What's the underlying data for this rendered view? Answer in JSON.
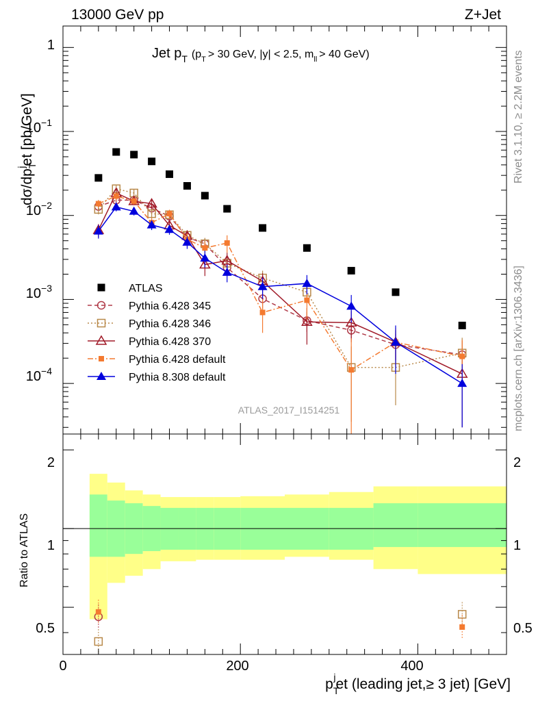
{
  "header": {
    "left": "13000 GeV pp",
    "right": "Z+Jet"
  },
  "title": {
    "main": "Jet p",
    "main_sub": "T",
    "cuts_1": "(p",
    "cuts_1_sub": "T",
    "cuts_2": "> 30 GeV, |y| < 2.5, m",
    "cuts_2_sub": "ll",
    "cuts_3": "> 40 GeV)"
  },
  "side_labels": {
    "rivet": "Rivet 3.1.10, ≥ 2.2M events",
    "mcplots": "mcplots.cern.ch [arXiv:1306.3436]"
  },
  "analysis_id": "ATLAS_2017_I1514251",
  "axes": {
    "ylabel_top": "dσ/dp_T^jet [pb/GeV]",
    "ylabel_bottom": "Ratio to ATLAS",
    "xlabel": "p_T^jet (leading jet,≥ 3 jet) [GeV]",
    "top_ticks": [
      "1",
      "10",
      "10",
      "10",
      "10"
    ],
    "top_ticks_exp": [
      "",
      "−1",
      "−2",
      "−3",
      "−4"
    ],
    "bottom_ticks": [
      "2",
      "1",
      "0.5"
    ],
    "x_ticks": [
      "0",
      "200",
      "400"
    ]
  },
  "colors": {
    "ATLAS": "#000000",
    "Pythia 6.428 345": "#b03a48",
    "Pythia 6.428 346": "#b8894a",
    "Pythia 6.428 370": "#a01a28",
    "Pythia 6.428 default": "#f47a30",
    "Pythia 8.308 default": "#0000dd",
    "band_inner": "#99ff99",
    "band_outer": "#ffff88"
  },
  "chart_data": {
    "type": "scatter",
    "x_scale": "linear",
    "y_scale": "log",
    "xlim": [
      0,
      500
    ],
    "ylim": [
      2.5e-05,
      1.8
    ],
    "ratio_ylim": [
      0.33,
      2.3
    ],
    "legend_position": "lower-left",
    "bin_edges": [
      30,
      50,
      70,
      90,
      110,
      130,
      150,
      170,
      200,
      250,
      300,
      350,
      400,
      500
    ],
    "x": [
      40,
      60,
      80,
      100,
      120,
      140,
      160,
      185,
      225,
      275,
      325,
      375,
      450
    ],
    "series": [
      {
        "name": "ATLAS",
        "style": "square-filled",
        "values": [
          0.028,
          0.057,
          0.053,
          0.044,
          0.031,
          0.0225,
          0.0172,
          0.012,
          0.0071,
          0.0041,
          0.0022,
          0.00122,
          0.00049
        ],
        "errors": [
          0,
          0,
          0,
          0,
          0,
          0,
          0,
          0,
          0,
          0,
          0,
          0,
          0
        ]
      },
      {
        "name": "Pythia 6.428 345",
        "style": "circle-open",
        "line": "dashed",
        "values": [
          0.0128,
          0.0152,
          0.0152,
          0.0122,
          0.0098,
          0.0055,
          0.0046,
          0.0024,
          0.00102,
          0.00056,
          0.00043,
          0.00029,
          0.00022
        ],
        "errors": [
          0.0015,
          0.0016,
          0.0015,
          0.0012,
          0.001,
          0.0008,
          0.0007,
          0.0005,
          0.00025,
          0.00015,
          0.00012,
          0.0001,
          0.0001
        ]
      },
      {
        "name": "Pythia 6.428 346",
        "style": "square-open",
        "line": "dotted",
        "values": [
          0.0118,
          0.0208,
          0.0185,
          0.0105,
          0.0102,
          0.0058,
          0.0046,
          0.0027,
          0.0018,
          0.00122,
          0.000155,
          0.000155,
          0.00023
        ],
        "errors": [
          0.0015,
          0.002,
          0.0018,
          0.0012,
          0.0011,
          0.0009,
          0.0008,
          0.0006,
          0.0004,
          0.0003,
          0.00012,
          0.0001,
          0.00012
        ]
      },
      {
        "name": "Pythia 6.428 370",
        "style": "triangle-open",
        "line": "solid",
        "values": [
          0.0067,
          0.0185,
          0.0148,
          0.0138,
          0.0076,
          0.0057,
          0.0026,
          0.0029,
          0.00165,
          0.00054,
          0.00053,
          0.00031,
          0.00013
        ],
        "errors": [
          0.0012,
          0.0018,
          0.0016,
          0.0015,
          0.001,
          0.0009,
          0.0007,
          0.0007,
          0.0004,
          0.00025,
          0.0002,
          0.00012,
          0.0001
        ]
      },
      {
        "name": "Pythia 6.428 default",
        "style": "square-filled-small",
        "line": "dashdot",
        "values": [
          0.0138,
          0.017,
          0.0148,
          0.0082,
          0.0105,
          0.0052,
          0.0041,
          0.0047,
          0.0007,
          0.00098,
          0.000145,
          0.00031,
          0.00021
        ],
        "errors": [
          0.0015,
          0.0018,
          0.0015,
          0.0011,
          0.0012,
          0.0009,
          0.0008,
          0.0011,
          0.0003,
          0.0004,
          0.0002,
          0.00015,
          0.00012
        ]
      },
      {
        "name": "Pythia 8.308 default",
        "style": "triangle-filled",
        "line": "solid",
        "values": [
          0.0065,
          0.0126,
          0.0112,
          0.0077,
          0.0068,
          0.0048,
          0.0031,
          0.0021,
          0.00142,
          0.00155,
          0.00083,
          0.00031,
          0.0001
        ],
        "errors": [
          0.0012,
          0.0014,
          0.0012,
          0.001,
          0.0009,
          0.0008,
          0.0007,
          0.0005,
          0.0004,
          0.0004,
          0.0003,
          0.00018,
          7e-05
        ]
      }
    ],
    "ratio_bands": {
      "inner_upper": [
        1.35,
        1.28,
        1.25,
        1.22,
        1.2,
        1.2,
        1.2,
        1.2,
        1.2,
        1.2,
        1.2,
        1.25,
        1.25
      ],
      "inner_lower": [
        0.78,
        0.78,
        0.8,
        0.82,
        0.83,
        0.83,
        0.83,
        0.83,
        0.83,
        0.83,
        0.83,
        0.85,
        0.85
      ],
      "outer_upper": [
        1.62,
        1.5,
        1.4,
        1.35,
        1.32,
        1.32,
        1.32,
        1.32,
        1.33,
        1.35,
        1.38,
        1.45,
        1.45
      ],
      "outer_lower": [
        0.45,
        0.62,
        0.66,
        0.7,
        0.75,
        0.75,
        0.76,
        0.76,
        0.76,
        0.78,
        0.76,
        0.7,
        0.67
      ]
    },
    "ratio_points": [
      {
        "name": "Pythia 6.428 345",
        "x": 40,
        "value": 0.46
      },
      {
        "name": "Pythia 6.428 346",
        "x": 40,
        "value": 0.37
      },
      {
        "name": "Pythia 6.428 default",
        "x": 40,
        "value": 0.48
      },
      {
        "name": "Pythia 6.428 346",
        "x": 450,
        "value": 0.47
      },
      {
        "name": "Pythia 6.428 default",
        "x": 450,
        "value": 0.42
      }
    ]
  }
}
